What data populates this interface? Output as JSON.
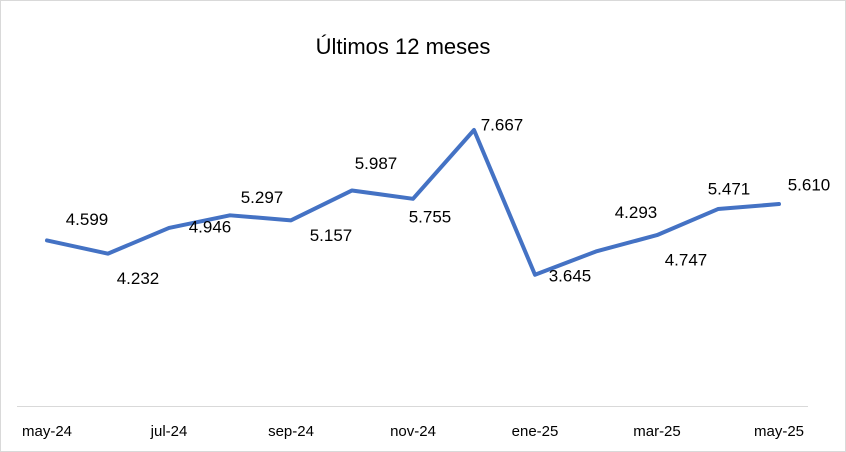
{
  "chart_data": {
    "type": "line",
    "title": "Últimos 12 meses",
    "categories": [
      "may-24",
      null,
      "jul-24",
      null,
      "sep-24",
      null,
      "nov-24",
      null,
      "ene-25",
      null,
      "mar-25",
      null,
      "may-25"
    ],
    "series": [
      {
        "color": "#4472c4",
        "values": [
          4.599,
          4.232,
          4.946,
          5.297,
          5.157,
          5.987,
          5.755,
          7.667,
          3.645,
          4.293,
          4.747,
          5.471,
          5.61
        ],
        "value_labels": [
          "4.599",
          "4.232",
          "4.946",
          "5.297",
          "5.157",
          "5.987",
          "5.755",
          "7.667",
          "3.645",
          "4.293",
          "4.747",
          "5.471",
          "5.610"
        ]
      }
    ],
    "ylim": [
      0,
      9
    ]
  }
}
